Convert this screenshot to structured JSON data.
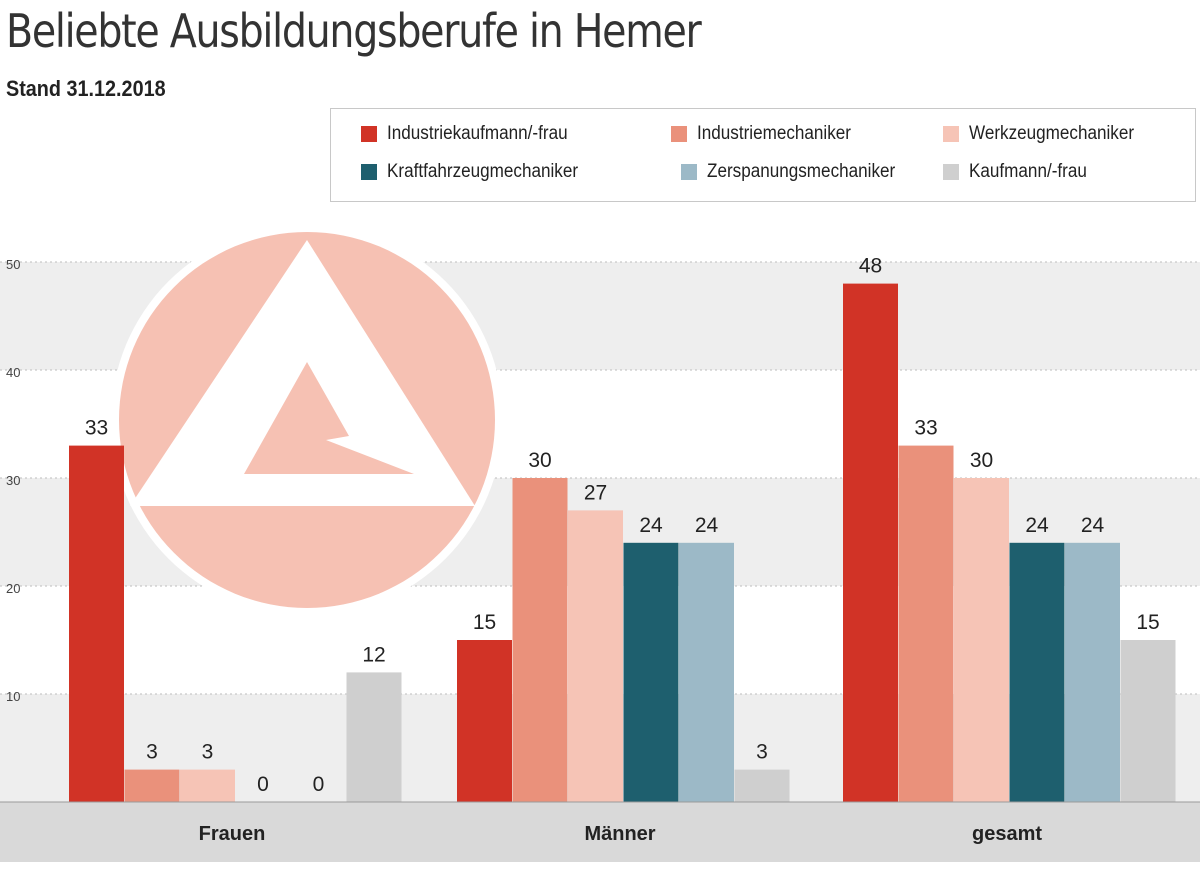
{
  "title": "Beliebte Ausbildungsberufe in Hemer",
  "subtitle": "Stand 31.12.2018",
  "colors": {
    "Industriekaufmann/-frau": "#d13326",
    "Industriemechaniker": "#ea917b",
    "Werkzeugmechaniker": "#f6c4b6",
    "Kraftfahrzeugmechaniker": "#1e5f6e",
    "Zerspanungsmechaniker": "#9cb9c7",
    "Kaufmann/-frau": "#cfcfcf",
    "band_light": "#eeeeee",
    "axis_band": "#d9d9d9",
    "logo": "#f6c1b3"
  },
  "legend": {
    "items": [
      {
        "label": "Industriekaufmann/-frau"
      },
      {
        "label": "Industriemechaniker"
      },
      {
        "label": "Werkzeugmechaniker"
      },
      {
        "label": "Kraftfahrzeugmechaniker"
      },
      {
        "label": "Zerspanungsmechaniker"
      },
      {
        "label": "Kaufmann/-frau"
      }
    ]
  },
  "chart_data": {
    "type": "bar",
    "title": "Beliebte Ausbildungsberufe in Hemer",
    "subtitle": "Stand 31.12.2018",
    "xlabel": "",
    "ylabel": "",
    "categories": [
      "Frauen",
      "Männer",
      "gesamt"
    ],
    "series": [
      {
        "name": "Industriekaufmann/-frau",
        "values": [
          33,
          15,
          48
        ]
      },
      {
        "name": "Industriemechaniker",
        "values": [
          3,
          30,
          33
        ]
      },
      {
        "name": "Werkzeugmechaniker",
        "values": [
          3,
          27,
          30
        ]
      },
      {
        "name": "Kraftfahrzeugmechaniker",
        "values": [
          0,
          24,
          24
        ]
      },
      {
        "name": "Zerspanungsmechaniker",
        "values": [
          0,
          24,
          24
        ]
      },
      {
        "name": "Kaufmann/-frau",
        "values": [
          12,
          3,
          15
        ]
      }
    ],
    "ylim": [
      0,
      50
    ],
    "yticks": [
      10,
      20,
      30,
      40,
      50
    ],
    "data_labels": true,
    "grid": true,
    "legend_position": "top-right"
  }
}
